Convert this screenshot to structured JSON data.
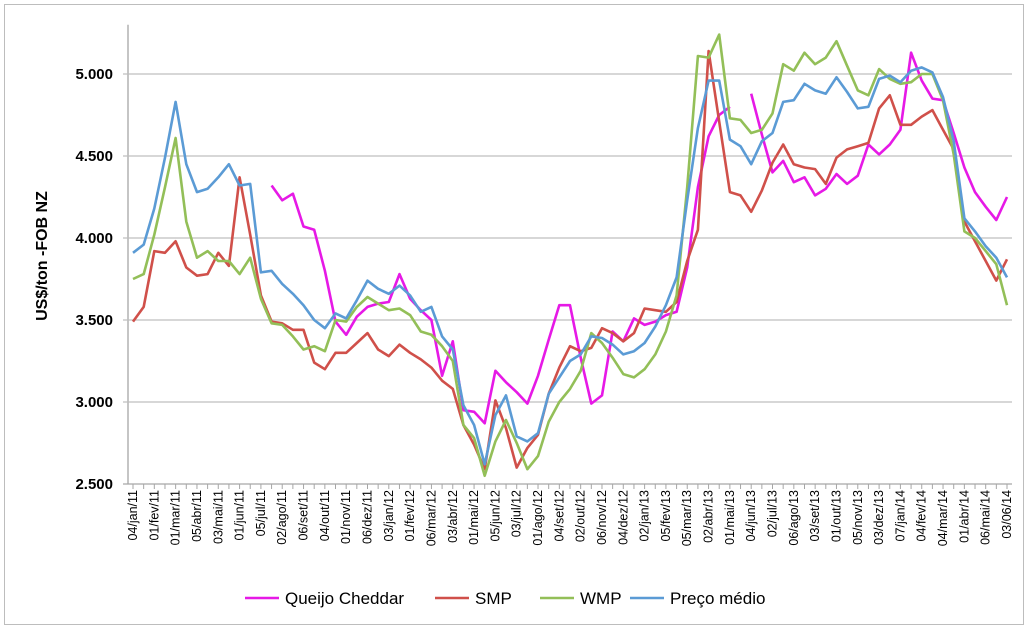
{
  "chart_data": {
    "type": "line",
    "title": "",
    "xlabel": "",
    "ylabel": "US$/ton -FOB NZ",
    "ylim": [
      2500,
      5300
    ],
    "yticks": [
      2500,
      3000,
      3500,
      4000,
      4500,
      5000
    ],
    "ytick_labels": [
      "2.500",
      "3.000",
      "3.500",
      "4.000",
      "4.500",
      "5.000"
    ],
    "grid": true,
    "legend_position": "bottom",
    "xtick_labels": [
      "04/jan/11",
      "01/fev/11",
      "01/mar/11",
      "05/abr/11",
      "03/mai/11",
      "01/jun/11",
      "05/jul/11",
      "02/ago/11",
      "06/set/11",
      "04/out/11",
      "01/nov/11",
      "06/dez/11",
      "03/jan/12",
      "01/fev/12",
      "06/mar/12",
      "03/abr/12",
      "01/mai/12",
      "05/jun/12",
      "03/jul/12",
      "01/ago/12",
      "04/set/12",
      "02/out/12",
      "06/nov/12",
      "04/dez/12",
      "02/jan/13",
      "05/fev/13",
      "05/mar/13",
      "02/abr/13",
      "01/mai/13",
      "04/jun/13",
      "02/jul/13",
      "06/ago/13",
      "03/set/13",
      "01/out/13",
      "05/nov/13",
      "03/dez/13",
      "07/jan/14",
      "04/fev/14",
      "04/mar/14",
      "01/abr/14",
      "06/mai/14",
      "03/06/14"
    ],
    "series": [
      {
        "name": "Queijo Cheddar",
        "color": "#e619e6",
        "values": [
          null,
          null,
          null,
          null,
          null,
          null,
          null,
          null,
          null,
          null,
          null,
          null,
          null,
          4320,
          4230,
          4270,
          4070,
          4050,
          3800,
          3490,
          3410,
          3520,
          3580,
          3600,
          3610,
          3780,
          3630,
          3560,
          3500,
          3160,
          3370,
          2950,
          2940,
          2870,
          3190,
          3120,
          3060,
          2990,
          3160,
          3380,
          3590,
          3590,
          3270,
          2990,
          3040,
          3430,
          3370,
          3510,
          3470,
          3490,
          3530,
          3550,
          3820,
          4310,
          4620,
          4750,
          4800,
          null,
          4880,
          4630,
          4400,
          4470,
          4340,
          4370,
          4260,
          4300,
          4390,
          4330,
          4380,
          4570,
          4510,
          4570,
          4660,
          5130,
          4960,
          4850,
          4840,
          4640,
          4430,
          4280,
          4190,
          4110,
          4250
        ]
      },
      {
        "name": "SMP",
        "color": "#d0504a",
        "values": [
          3490,
          3580,
          3920,
          3910,
          3980,
          3820,
          3770,
          3780,
          3910,
          3830,
          4370,
          4020,
          3650,
          3490,
          3480,
          3440,
          3440,
          3240,
          3200,
          3300,
          3300,
          3360,
          3420,
          3320,
          3280,
          3350,
          3300,
          3260,
          3210,
          3130,
          3080,
          2860,
          2740,
          2590,
          3010,
          2840,
          2600,
          2720,
          2800,
          3050,
          3210,
          3340,
          3310,
          3330,
          3450,
          3420,
          3370,
          3420,
          3570,
          3560,
          3550,
          3610,
          3860,
          4050,
          5140,
          4710,
          4280,
          4260,
          4160,
          4290,
          4460,
          4570,
          4450,
          4430,
          4420,
          4330,
          4490,
          4540,
          4560,
          4580,
          4790,
          4870,
          4690,
          4690,
          4740,
          4780,
          4660,
          4540,
          4100,
          3980,
          3860,
          3740,
          3870
        ]
      },
      {
        "name": "WMP",
        "color": "#93bf58",
        "values": [
          3750,
          3780,
          4020,
          4310,
          4610,
          4100,
          3880,
          3920,
          3860,
          3860,
          3780,
          3880,
          3630,
          3480,
          3470,
          3400,
          3320,
          3340,
          3310,
          3500,
          3490,
          3580,
          3640,
          3600,
          3560,
          3570,
          3530,
          3430,
          3410,
          3340,
          3250,
          2860,
          2780,
          2550,
          2760,
          2890,
          2750,
          2590,
          2670,
          2880,
          3000,
          3080,
          3190,
          3420,
          3360,
          3270,
          3170,
          3150,
          3200,
          3290,
          3430,
          3650,
          4310,
          5110,
          5100,
          5240,
          4730,
          4720,
          4640,
          4660,
          4760,
          5060,
          5020,
          5130,
          5060,
          5100,
          5200,
          5050,
          4900,
          4870,
          5030,
          4970,
          4940,
          4950,
          5000,
          5000,
          4840,
          4510,
          4040,
          4000,
          3920,
          3840,
          3590
        ]
      },
      {
        "name": "Preço médio",
        "color": "#5b9bd5",
        "values": [
          3910,
          3960,
          4180,
          4490,
          4830,
          4450,
          4280,
          4300,
          4370,
          4450,
          4320,
          4330,
          3790,
          3800,
          3720,
          3660,
          3590,
          3500,
          3450,
          3540,
          3510,
          3620,
          3740,
          3690,
          3660,
          3710,
          3650,
          3550,
          3580,
          3400,
          3320,
          2980,
          2860,
          2620,
          2920,
          3040,
          2790,
          2760,
          2810,
          3050,
          3150,
          3250,
          3290,
          3400,
          3390,
          3350,
          3290,
          3310,
          3360,
          3460,
          3590,
          3760,
          4230,
          4670,
          4960,
          4960,
          4600,
          4560,
          4450,
          4590,
          4640,
          4830,
          4840,
          4940,
          4900,
          4880,
          4980,
          4890,
          4790,
          4800,
          4970,
          4990,
          4950,
          5020,
          5040,
          5010,
          4860,
          4590,
          4120,
          4040,
          3950,
          3880,
          3760
        ]
      }
    ]
  }
}
